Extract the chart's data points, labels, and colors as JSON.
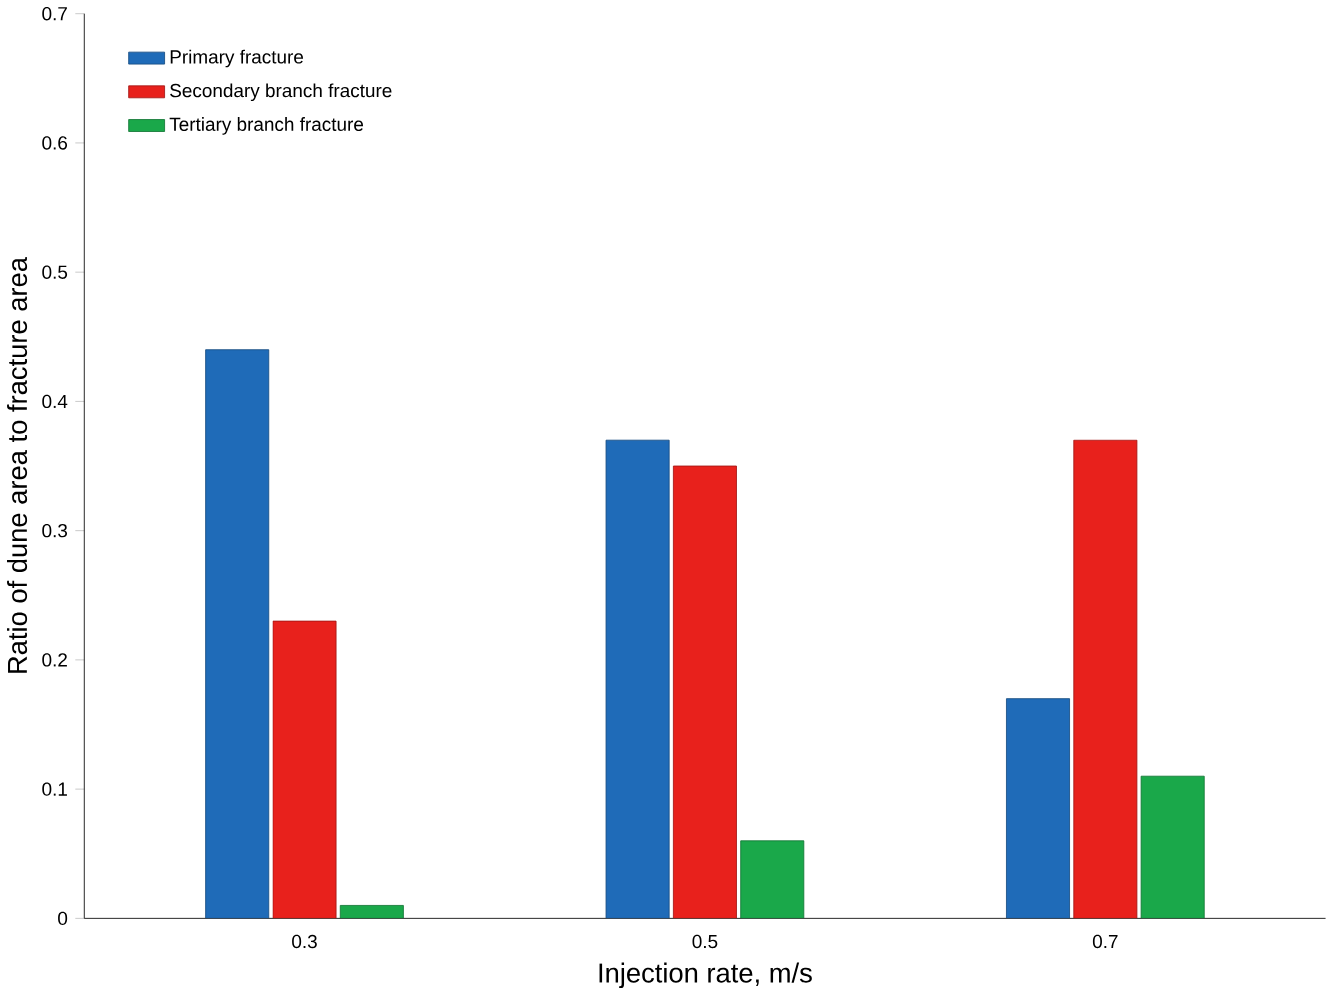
{
  "chart_data": {
    "type": "bar",
    "xlabel": "Injection rate, m/s",
    "ylabel": "Ratio of dune area to fracture area",
    "categories": [
      "0.3",
      "0.5",
      "0.7"
    ],
    "series": [
      {
        "name": "Primary fracture",
        "color": "#1f6bb8",
        "values": [
          0.44,
          0.37,
          0.17
        ]
      },
      {
        "name": "Secondary branch fracture",
        "color": "#e8211c",
        "values": [
          0.23,
          0.35,
          0.37
        ]
      },
      {
        "name": "Tertiary branch fracture",
        "color": "#1aa84a",
        "values": [
          0.01,
          0.06,
          0.11
        ]
      }
    ],
    "ylim": [
      0,
      0.7
    ],
    "yticks": [
      0,
      0.1,
      0.2,
      0.3,
      0.4,
      0.5,
      0.6,
      0.7
    ],
    "legend": "top left"
  }
}
